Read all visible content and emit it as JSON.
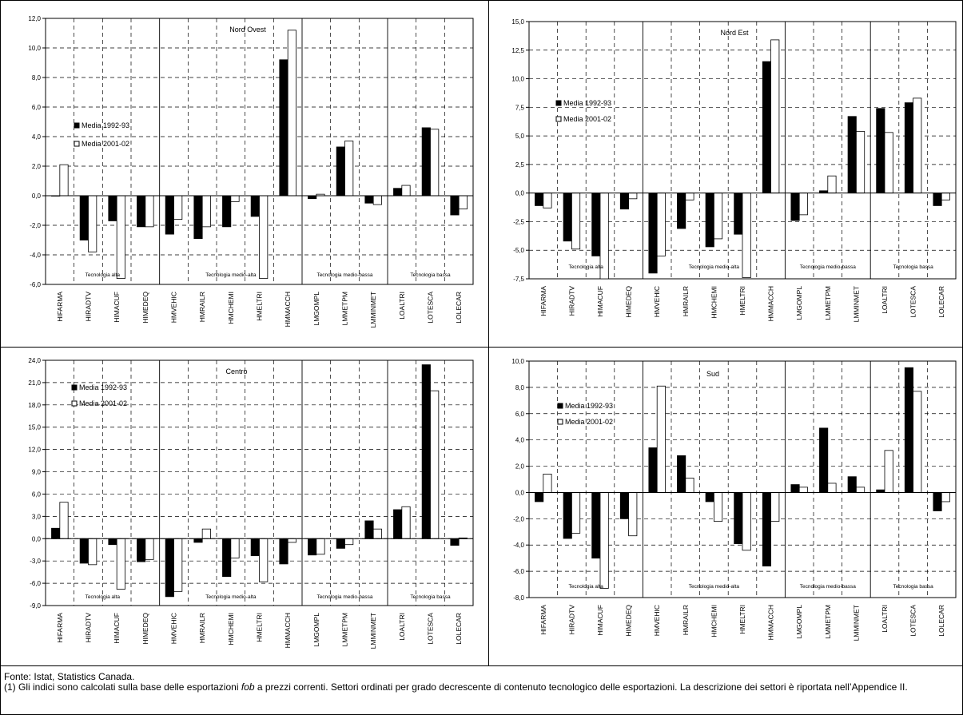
{
  "legend": {
    "series1": "Media 1992-93",
    "series2": "Media 2001-02"
  },
  "groups": [
    "Tecnologia alta",
    "Tecnologia medio-alta",
    "Tecnologia medio-bassa",
    "Tecnologia bassa"
  ],
  "chart_data": [
    {
      "type": "bar",
      "title": "Nord Ovest",
      "categories": [
        "HIFARMA",
        "HIRADTV",
        "HIMACUF",
        "HIMEDEQ",
        "HMVEHIC",
        "HMRAILR",
        "HMCHEMI",
        "HMELTRI",
        "HMMACCH",
        "LMGOMPL",
        "LMMETPM",
        "LMMINMET",
        "LOALTRI",
        "LOTESCA",
        "LOLECAR"
      ],
      "ylim": [
        -6,
        12
      ],
      "yticks": [
        "-6,0",
        "-4,0",
        "-2,0",
        "0,0",
        "2,0",
        "4,0",
        "6,0",
        "8,0",
        "10,0",
        "12,0"
      ],
      "series": [
        {
          "name": "Media 1992-93",
          "values": [
            0,
            -3.0,
            -1.7,
            -2.1,
            -2.6,
            -2.9,
            -2.1,
            -1.4,
            9.2,
            -0.2,
            3.3,
            -0.5,
            0.5,
            4.6,
            -1.3
          ]
        },
        {
          "name": "Media 2001-02",
          "values": [
            2.1,
            -3.8,
            -5.6,
            -2.1,
            -1.6,
            -2.1,
            -0.4,
            -5.6,
            11.2,
            0.1,
            3.7,
            -0.6,
            0.7,
            4.5,
            -0.9
          ]
        }
      ]
    },
    {
      "type": "bar",
      "title": "Nord Est",
      "categories": [
        "HIFARMA",
        "HIRADTV",
        "HIMACUF",
        "HIMEDEQ",
        "HMVEHIC",
        "HMRAILR",
        "HMCHEMI",
        "HMELTRI",
        "HMMACCH",
        "LMGOMPL",
        "LMMETPM",
        "LMMINMET",
        "LOALTRI",
        "LOTESCA",
        "LOLECAR"
      ],
      "ylim": [
        -7.5,
        15
      ],
      "yticks": [
        "-7,5",
        "-5,0",
        "-2,5",
        "0,0",
        "2,5",
        "5,0",
        "7,5",
        "10,0",
        "12,5",
        "15,0"
      ],
      "series": [
        {
          "name": "Media 1992-93",
          "values": [
            -1.1,
            -4.2,
            -5.5,
            -1.4,
            -7.0,
            -3.1,
            -4.7,
            -3.6,
            11.5,
            -2.4,
            0.2,
            6.7,
            7.4,
            7.9,
            -1.1
          ]
        },
        {
          "name": "Media 2001-02",
          "values": [
            -1.3,
            -4.9,
            -7.5,
            -0.5,
            -5.5,
            -0.6,
            -4.0,
            -7.4,
            13.4,
            -1.9,
            1.5,
            5.4,
            5.3,
            8.3,
            -0.6
          ]
        }
      ]
    },
    {
      "type": "bar",
      "title": "Centro",
      "categories": [
        "HIFARMA",
        "HIRADTV",
        "HIMACUF",
        "HIMEDEQ",
        "HMVEHIC",
        "HMRAILR",
        "HMCHEMI",
        "HMELTRI",
        "HMMACCH",
        "LMGOMPL",
        "LMMETPM",
        "LMMINMET",
        "LOALTRI",
        "LOTESCA",
        "LOLECAR"
      ],
      "ylim": [
        -9,
        24
      ],
      "yticks": [
        "-9,0",
        "-6,0",
        "-3,0",
        "0,0",
        "3,0",
        "6,0",
        "9,0",
        "12,0",
        "15,0",
        "18,0",
        "21,0",
        "24,0"
      ],
      "series": [
        {
          "name": "Media 1992-93",
          "values": [
            1.4,
            -3.3,
            -0.8,
            -3.1,
            -7.8,
            -0.5,
            -5.1,
            -2.3,
            -3.4,
            -2.2,
            -1.3,
            2.4,
            3.9,
            23.4,
            -0.9
          ]
        },
        {
          "name": "Media 2001-02",
          "values": [
            4.9,
            -3.5,
            -6.8,
            -2.8,
            -7.1,
            1.3,
            -2.6,
            -5.8,
            -0.5,
            -2.1,
            -0.8,
            1.3,
            4.3,
            19.9,
            0.1
          ]
        }
      ]
    },
    {
      "type": "bar",
      "title": "Sud",
      "categories": [
        "HIFARMA",
        "HIRADTV",
        "HIMACUF",
        "HIMEDEQ",
        "HMVEHIC",
        "HMRAILR",
        "HMCHEMI",
        "HMELTRI",
        "HMMACCH",
        "LMGOMPL",
        "LMMETPM",
        "LMMINMET",
        "LOALTRI",
        "LOTESCA",
        "LOLECAR"
      ],
      "ylim": [
        -8,
        10
      ],
      "yticks": [
        "-8,0",
        "-6,0",
        "-4,0",
        "-2,0",
        "0,0",
        "2,0",
        "4,0",
        "6,0",
        "8,0",
        "10,0"
      ],
      "series": [
        {
          "name": "Media 1992-93",
          "values": [
            -0.7,
            -3.5,
            -5.0,
            -2.0,
            3.4,
            2.8,
            -0.7,
            -3.9,
            -5.6,
            0.6,
            4.9,
            1.2,
            0.2,
            9.5,
            -1.4
          ]
        },
        {
          "name": "Media 2001-02",
          "values": [
            1.4,
            -3.1,
            -7.3,
            -3.3,
            8.1,
            1.1,
            -2.2,
            -4.4,
            -2.2,
            0.4,
            0.7,
            0.4,
            3.2,
            7.7,
            -0.7
          ]
        }
      ]
    }
  ],
  "footer": {
    "source": "Fonte: Istat, Statistics Canada.",
    "note_a": "(1) Gli indici sono calcolati sulla base delle esportazioni ",
    "note_em": "fob",
    "note_b": " a prezzi correnti. Settori ordinati per grado decrescente di contenuto tecnologico delle esportazioni. La descrizione dei settori è riportata nell’Appendice II."
  }
}
